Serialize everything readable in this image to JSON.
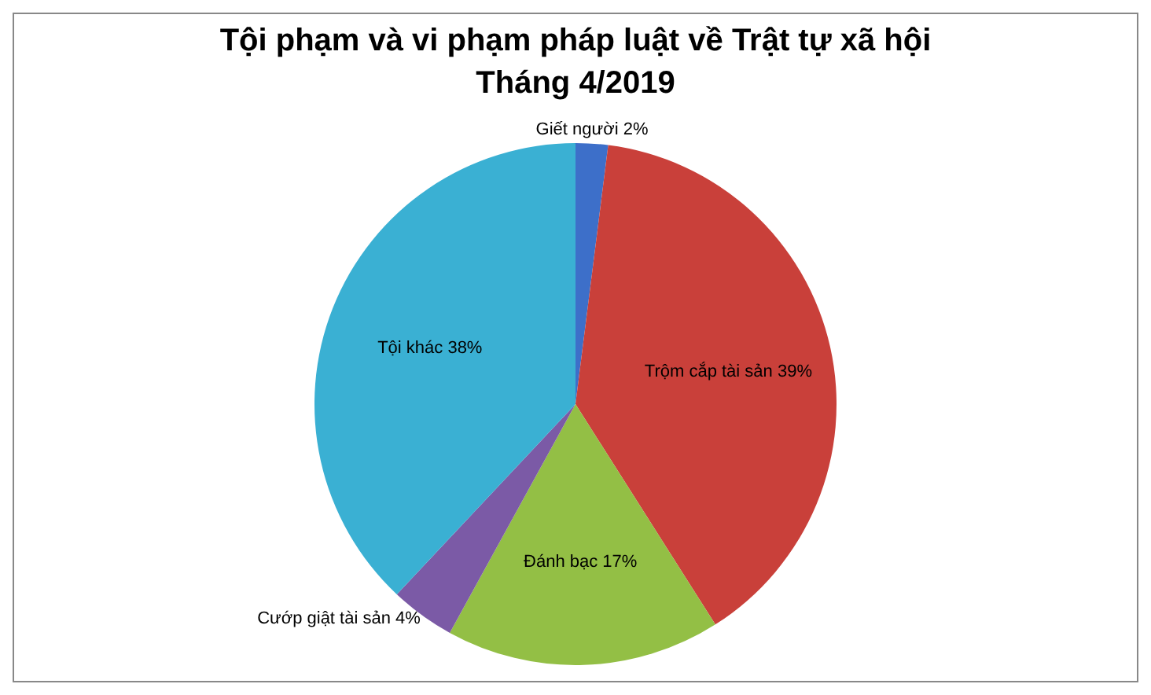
{
  "chart_data": {
    "type": "pie",
    "title": "Tội phạm và vi phạm pháp luật về Trật tự xã hội\nTháng 4/2019",
    "categories": [
      "Giết người",
      "Trộm cắp tài sản",
      "Đánh bạc",
      "Cướp giật tài sản",
      "Tội khác"
    ],
    "values": [
      2,
      39,
      17,
      4,
      38
    ],
    "value_labels": [
      "2%",
      "39%",
      "17%",
      "4%",
      "38%"
    ],
    "colors": [
      "#3d6fc9",
      "#c9403a",
      "#93bf45",
      "#7b5aa6",
      "#3ab0d3"
    ]
  }
}
